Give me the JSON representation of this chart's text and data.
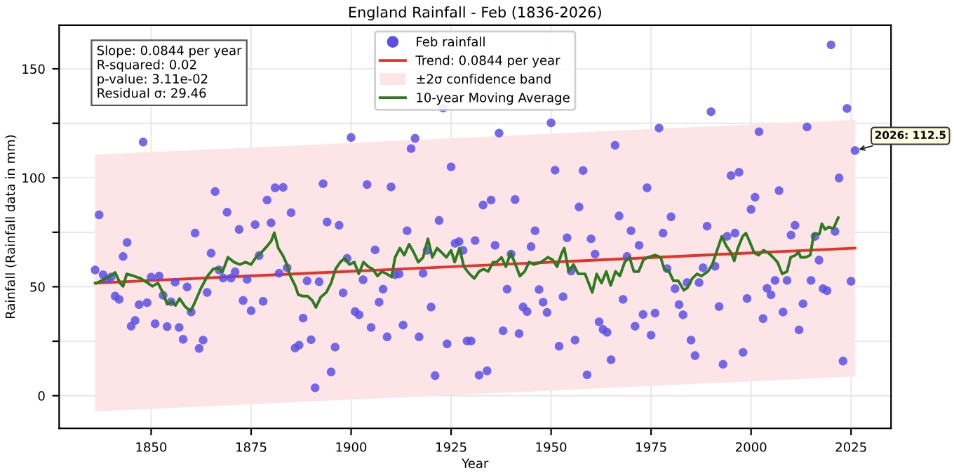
{
  "chart_data": {
    "type": "scatter",
    "title": "England Rainfall - Feb (1836-2026)",
    "xlabel": "Year",
    "ylabel": "Rainfall (Rainfall data in mm)",
    "xlim": [
      1827,
      2035
    ],
    "xticks": [
      1850,
      1875,
      1900,
      1925,
      1950,
      1975,
      2000,
      2025
    ],
    "ylim": [
      -15,
      170
    ],
    "yticks": [
      0,
      {
        "value": 25,
        "label": null
      },
      50,
      {
        "value": 75,
        "label": null
      },
      100,
      {
        "value": 125,
        "label": null
      },
      150
    ],
    "grid": true,
    "legend": "top",
    "annotations": [
      "Slope: 0.0844 per year\nR-squared: 0.02\np-value: 3.11e-02\nResidual σ: 29.46",
      {
        "text": "2026: 112.5",
        "x": 2026,
        "y": 112.5
      },
      "±2σ confidence band"
    ],
    "series": [
      {
        "name": "Feb rainfall",
        "color": "#5a50e6",
        "marker": "circle",
        "x": [
          1836,
          1837,
          1838,
          1839,
          1840,
          1841,
          1842,
          1843,
          1844,
          1845,
          1846,
          1847,
          1848,
          1849,
          1850,
          1851,
          1852,
          1853,
          1854,
          1855,
          1856,
          1857,
          1858,
          1859,
          1860,
          1861,
          1862,
          1863,
          1864,
          1865,
          1866,
          1867,
          1868,
          1869,
          1870,
          1871,
          1872,
          1873,
          1874,
          1875,
          1876,
          1877,
          1878,
          1879,
          1880,
          1881,
          1882,
          1883,
          1884,
          1885,
          1886,
          1887,
          1888,
          1889,
          1890,
          1891,
          1892,
          1893,
          1894,
          1895,
          1896,
          1897,
          1898,
          1899,
          1900,
          1901,
          1902,
          1903,
          1904,
          1905,
          1906,
          1907,
          1908,
          1909,
          1910,
          1911,
          1912,
          1913,
          1914,
          1915,
          1916,
          1917,
          1918,
          1919,
          1920,
          1921,
          1922,
          1923,
          1924,
          1925,
          1926,
          1927,
          1928,
          1929,
          1930,
          1931,
          1932,
          1933,
          1934,
          1935,
          1936,
          1937,
          1938,
          1939,
          1940,
          1941,
          1942,
          1943,
          1944,
          1945,
          1946,
          1947,
          1948,
          1949,
          1950,
          1951,
          1952,
          1953,
          1954,
          1955,
          1956,
          1957,
          1958,
          1959,
          1960,
          1961,
          1962,
          1963,
          1964,
          1965,
          1966,
          1967,
          1968,
          1969,
          1970,
          1971,
          1972,
          1973,
          1974,
          1975,
          1976,
          1977,
          1978,
          1979,
          1980,
          1981,
          1982,
          1983,
          1984,
          1985,
          1986,
          1987,
          1988,
          1989,
          1990,
          1991,
          1992,
          1993,
          1994,
          1995,
          1996,
          1997,
          1998,
          1999,
          2000,
          2001,
          2002,
          2003,
          2004,
          2005,
          2006,
          2007,
          2008,
          2009,
          2010,
          2011,
          2012,
          2013,
          2014,
          2015,
          2016,
          2017,
          2018,
          2019,
          2020,
          2021,
          2022,
          2023,
          2024,
          2025,
          2026
        ],
        "values": [
          57.7,
          83.0,
          55.5,
          53.4,
          54.4,
          45.7,
          44.2,
          63.9,
          70.3,
          31.9,
          34.5,
          41.8,
          116.4,
          42.7,
          54.4,
          33.0,
          54.9,
          46.1,
          31.7,
          43.1,
          52.1,
          31.3,
          25.9,
          49.9,
          38.4,
          74.6,
          21.7,
          25.5,
          47.4,
          65.4,
          93.7,
          57.7,
          54.0,
          84.2,
          54.0,
          56.8,
          76.3,
          43.7,
          53.4,
          39.0,
          78.5,
          64.3,
          43.3,
          89.8,
          79.3,
          95.4,
          56.2,
          95.6,
          58.7,
          84.0,
          21.9,
          23.2,
          35.6,
          52.7,
          25.7,
          3.6,
          52.3,
          97.3,
          79.7,
          10.9,
          22.3,
          78.2,
          47.2,
          63.0,
          118.5,
          38.6,
          37.1,
          53.2,
          96.9,
          31.3,
          66.9,
          42.9,
          48.9,
          27.0,
          95.8,
          55.5,
          55.9,
          32.4,
          75.7,
          113.4,
          118.1,
          27.0,
          56.2,
          66.7,
          40.7,
          9.2,
          80.4,
          132.0,
          23.8,
          105.0,
          69.9,
          70.7,
          66.7,
          25.1,
          25.1,
          71.2,
          9.4,
          87.5,
          11.4,
          89.8,
          69.0,
          120.5,
          29.8,
          48.9,
          65.0,
          90.0,
          28.5,
          40.7,
          38.6,
          68.4,
          75.7,
          48.7,
          42.9,
          38.2,
          125.2,
          103.5,
          22.7,
          45.4,
          72.5,
          57.2,
          25.5,
          86.6,
          103.3,
          9.6,
          72.0,
          65.0,
          33.9,
          30.4,
          29.1,
          16.5,
          114.9,
          82.5,
          44.2,
          63.9,
          75.7,
          31.9,
          69.0,
          37.3,
          95.4,
          27.8,
          37.9,
          122.8,
          74.6,
          58.3,
          82.1,
          49.1,
          41.8,
          37.1,
          51.9,
          25.5,
          18.4,
          51.9,
          58.7,
          77.8,
          130.3,
          59.4,
          40.9,
          14.4,
          73.1,
          101.0,
          74.6,
          102.5,
          19.9,
          44.6,
          85.5,
          91.1,
          121.1,
          35.4,
          49.3,
          46.3,
          52.9,
          94.1,
          38.4,
          52.9,
          73.7,
          78.2,
          30.2,
          42.2,
          123.3,
          52.9,
          73.1,
          62.2,
          49.1,
          48.2,
          161.0,
          75.4,
          99.9,
          15.9,
          131.8,
          52.5,
          112.5
        ]
      },
      {
        "type": "line",
        "name": "Trend: 0.0844 per year",
        "color": "#e3342a",
        "x": [
          1836,
          2026
        ],
        "values": [
          51.7,
          67.7
        ],
        "lower": [
          -7.2,
          8.8
        ],
        "upper": [
          110.6,
          126.6
        ]
      },
      {
        "type": "line",
        "name": "10-year Moving Average",
        "color": "#2e7a1f",
        "x": [
          1836.3,
          1839.8,
          1841.0,
          1842.2,
          1843.0,
          1843.9,
          1845.7,
          1847.4,
          1849.2,
          1850.3,
          1851.7,
          1852.9,
          1854.0,
          1855.2,
          1856.1,
          1857.1,
          1858.5,
          1859.9,
          1861.0,
          1862.5,
          1864.1,
          1865.5,
          1866.6,
          1867.8,
          1869.2,
          1870.7,
          1872.2,
          1873.6,
          1875.0,
          1876.2,
          1877.3,
          1878.8,
          1880.0,
          1880.8,
          1881.8,
          1882.9,
          1883.7,
          1884.8,
          1886.0,
          1886.8,
          1888.0,
          1889.1,
          1890.3,
          1891.2,
          1892.4,
          1893.8,
          1895.0,
          1896.1,
          1897.3,
          1898.4,
          1899.6,
          1900.8,
          1901.9,
          1903.1,
          1904.3,
          1905.4,
          1906.6,
          1907.7,
          1908.9,
          1910.1,
          1911.0,
          1912.2,
          1913.3,
          1914.5,
          1915.7,
          1916.8,
          1918.0,
          1919.2,
          1920.3,
          1921.5,
          1922.7,
          1923.8,
          1925.0,
          1925.9,
          1927.1,
          1928.2,
          1929.6,
          1930.8,
          1932.0,
          1933.1,
          1934.3,
          1935.5,
          1936.4,
          1937.6,
          1938.7,
          1939.9,
          1941.1,
          1942.2,
          1943.4,
          1944.5,
          1945.7,
          1947.5,
          1949.2,
          1950.4,
          1951.5,
          1952.7,
          1953.3,
          1954.4,
          1955.6,
          1956.8,
          1958.5,
          1960.3,
          1961.4,
          1962.6,
          1963.8,
          1964.9,
          1966.1,
          1967.2,
          1968.4,
          1969.6,
          1970.7,
          1971.9,
          1973.1,
          1974.2,
          1976.0,
          1977.4,
          1978.3,
          1979.5,
          1980.6,
          1981.8,
          1983.2,
          1984.1,
          1985.3,
          1986.5,
          1987.6,
          1989.2,
          1990.3,
          1991.5,
          1992.7,
          1993.8,
          1995.0,
          1995.8,
          1996.7,
          1997.9,
          1998.7,
          1999.6,
          2000.8,
          2001.9,
          2003.1,
          2004.3,
          2005.5,
          2006.6,
          2007.8,
          2009.0,
          2009.9,
          2011.1,
          2011.9,
          2012.4,
          2013.6,
          2014.8,
          2015.7,
          2017.1,
          2017.7,
          2018.5,
          2019.4,
          2020.6,
          2021.8
        ],
        "values": [
          51.6,
          54.9,
          56.6,
          51.7,
          50.2,
          55.9,
          54.9,
          53.8,
          51.7,
          50.2,
          51.7,
          47.4,
          42.0,
          43.1,
          41.4,
          44.6,
          40.9,
          38.8,
          43.1,
          49.5,
          54.9,
          58.1,
          58.7,
          56.6,
          63.5,
          61.3,
          60.2,
          61.3,
          60.2,
          63.5,
          65.2,
          68.2,
          70.9,
          74.8,
          67.7,
          64.5,
          61.3,
          54.9,
          50.6,
          46.3,
          45.7,
          45.7,
          43.7,
          40.5,
          45.2,
          47.4,
          51.7,
          58.1,
          61.3,
          63.0,
          60.2,
          61.3,
          55.9,
          61.3,
          59.2,
          58.1,
          54.9,
          57.0,
          55.9,
          54.5,
          63.5,
          67.7,
          64.5,
          69.5,
          65.6,
          61.3,
          63.5,
          72.0,
          63.5,
          67.7,
          65.6,
          63.5,
          66.7,
          61.3,
          67.7,
          59.2,
          55.9,
          53.8,
          57.0,
          58.1,
          57.0,
          61.3,
          61.3,
          63.5,
          59.2,
          65.6,
          60.2,
          54.9,
          57.0,
          61.3,
          60.2,
          61.3,
          63.5,
          62.4,
          59.2,
          65.6,
          67.7,
          57.0,
          60.2,
          55.9,
          55.9,
          47.4,
          55.9,
          51.7,
          57.0,
          50.6,
          57.0,
          54.9,
          61.3,
          63.5,
          57.0,
          57.0,
          62.4,
          63.5,
          64.5,
          63.5,
          58.1,
          57.0,
          52.7,
          52.7,
          48.4,
          49.5,
          53.8,
          55.9,
          54.9,
          57.0,
          60.2,
          66.7,
          73.1,
          68.8,
          65.6,
          61.9,
          67.7,
          73.1,
          74.6,
          70.9,
          65.6,
          64.5,
          66.7,
          65.6,
          63.5,
          61.3,
          55.9,
          57.0,
          63.5,
          64.5,
          66.0,
          63.5,
          63.5,
          64.5,
          74.2,
          74.2,
          78.9,
          76.3,
          77.4,
          76.7,
          81.7
        ]
      }
    ]
  }
}
